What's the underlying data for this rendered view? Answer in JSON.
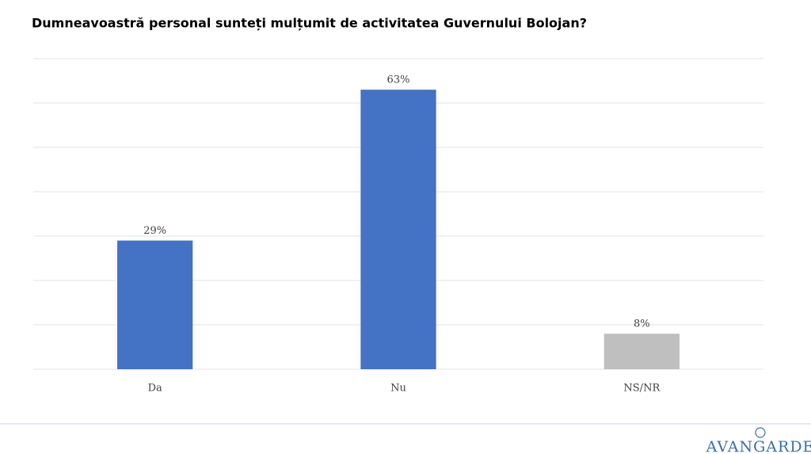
{
  "chart_data": {
    "type": "bar",
    "title": "Dumneavoastră personal sunteți mulțumit de activitatea Guvernului Bolojan?",
    "categories": [
      "Da",
      "Nu",
      "NS/NR"
    ],
    "values": [
      29,
      63,
      8
    ],
    "value_labels": [
      "29%",
      "63%",
      "8%"
    ],
    "colors": [
      "#4472c4",
      "#4472c4",
      "#bfbfbf"
    ],
    "ylim": [
      0,
      70
    ],
    "yticks": [
      0,
      10,
      20,
      30,
      40,
      50,
      60,
      70
    ],
    "grid": true
  },
  "logo": "AVANGARDE"
}
